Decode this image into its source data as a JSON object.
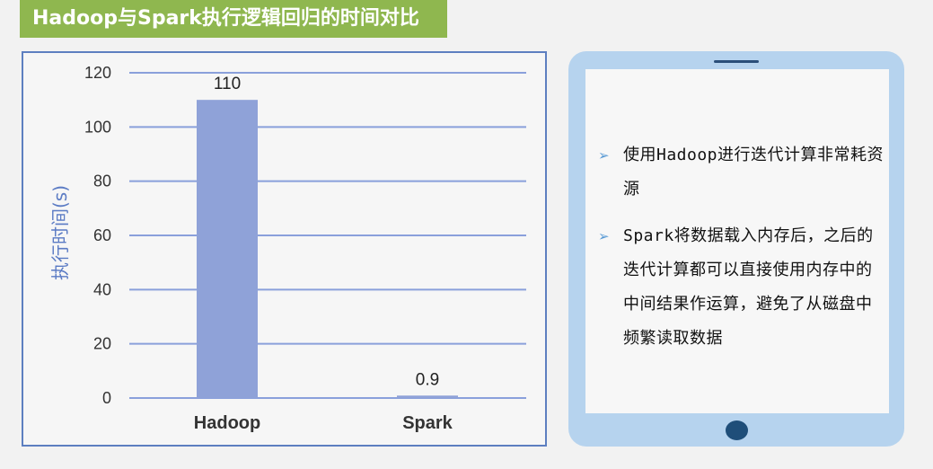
{
  "slide": {
    "title": "Hadoop与Spark执行逻辑回归的时间对比"
  },
  "colors": {
    "title_bg": "#8fb74f",
    "bar": "#8fa2d8",
    "grid": "#8aa0db",
    "tablet_frame": "#b6d3ee",
    "home_button": "#1f4e79"
  },
  "chart_data": {
    "type": "bar",
    "title": "",
    "xlabel": "",
    "ylabel": "执行时间(s)",
    "categories": [
      "Hadoop",
      "Spark"
    ],
    "values": [
      110,
      0.9
    ],
    "value_labels": [
      "110",
      "0.9"
    ],
    "ylim": [
      0,
      120
    ],
    "yticks": [
      0,
      20,
      40,
      60,
      80,
      100,
      120
    ],
    "grid": true,
    "legend": "none"
  },
  "tablet": {
    "bullets": [
      {
        "icon": "triangle-bullet-icon",
        "mark": "➢",
        "text": "使用Hadoop进行迭代计算非常耗资源"
      },
      {
        "icon": "triangle-bullet-icon",
        "mark": "➢",
        "text": "Spark将数据载入内存后，之后的迭代计算都可以直接使用内存中的中间结果作运算，避免了从磁盘中频繁读取数据"
      }
    ]
  }
}
